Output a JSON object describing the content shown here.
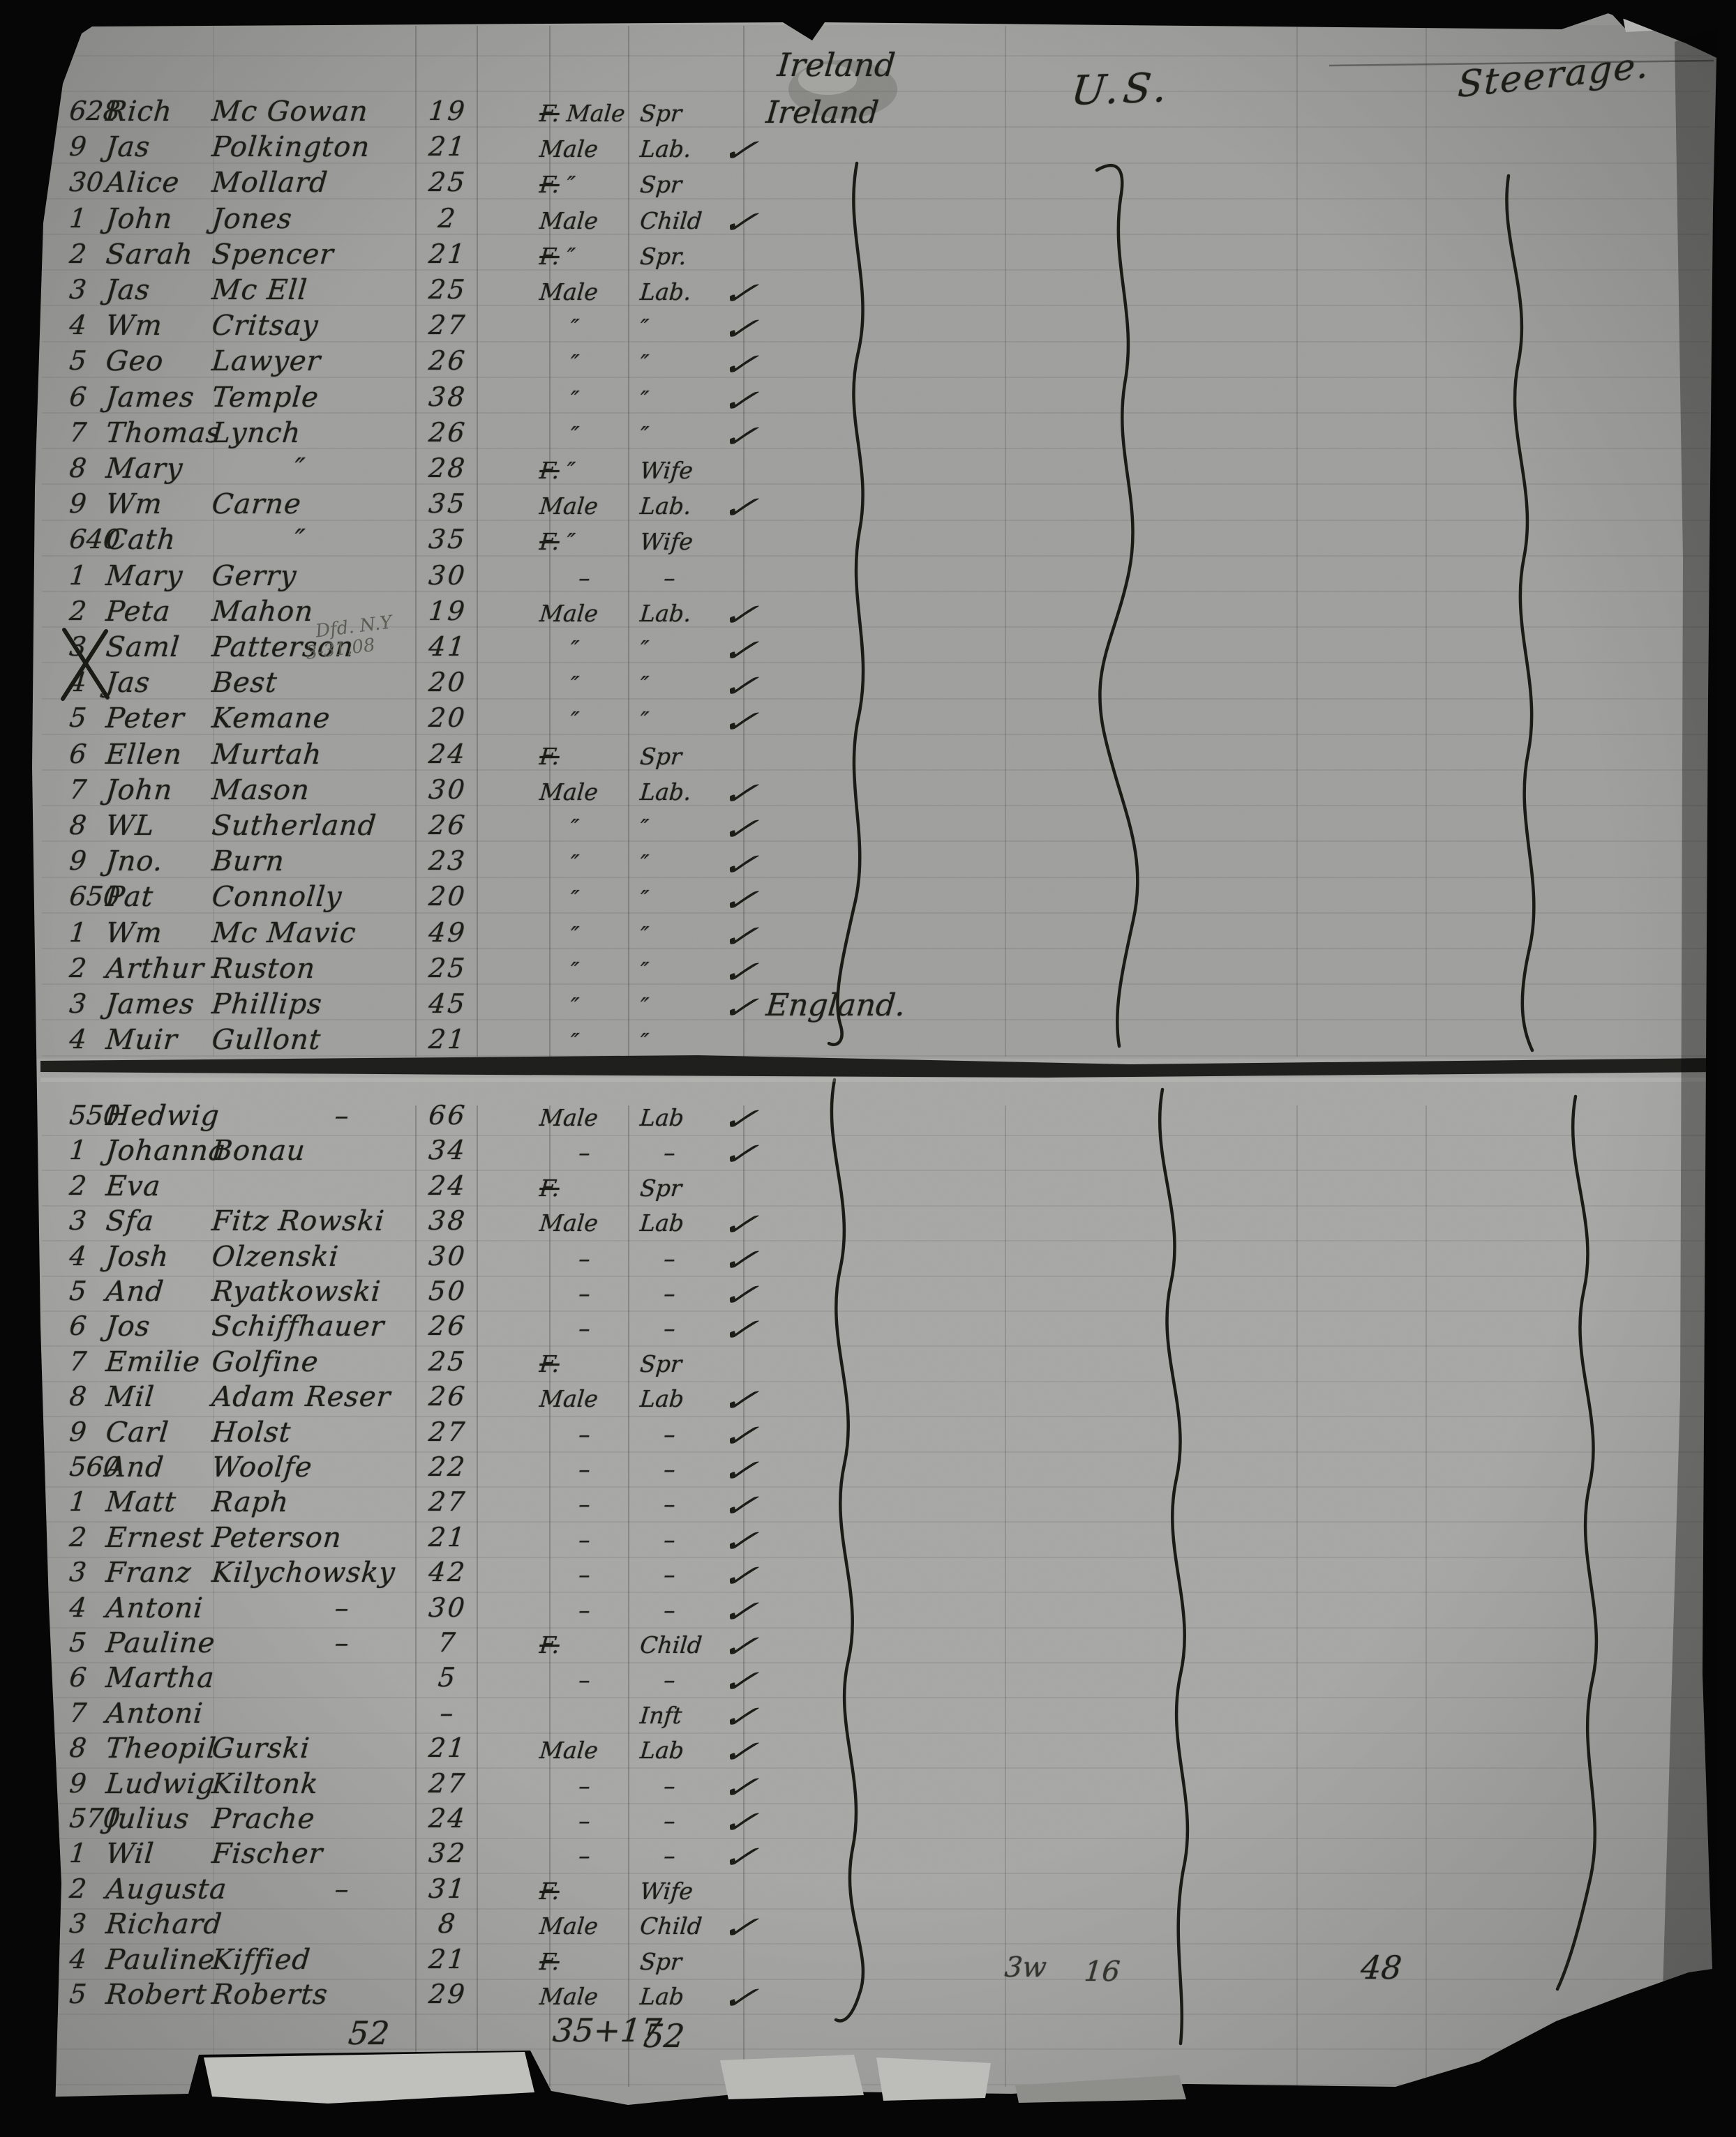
{
  "scan": {
    "headers": {
      "country_top": "Ireland",
      "destination": "U.S.",
      "class": "Steerage."
    },
    "pencil_note": {
      "line1": "Dfd. N.Y",
      "line2": "3-31,08"
    },
    "tallies": [
      {
        "text": "52"
      },
      {
        "text": "35+17"
      },
      {
        "text": "52"
      },
      {
        "text": "3w"
      },
      {
        "text": "16"
      },
      {
        "text": "48"
      }
    ],
    "pages": [
      {
        "label": "top-page",
        "rows": [
          {
            "no": "628",
            "given": "Rich",
            "surname": "Mc Gowan",
            "age": "19",
            "sex": "F. Male",
            "occupation": "Spr",
            "country": "Ireland",
            "check": false
          },
          {
            "no": "9",
            "given": "Jas",
            "surname": "Polkington",
            "age": "21",
            "sex": "Male",
            "occupation": "Lab.",
            "country": "",
            "check": true
          },
          {
            "no": "30",
            "given": "Alice",
            "surname": "Mollard",
            "age": "25",
            "sex": "F. ″",
            "occupation": "Spr",
            "country": "",
            "check": false
          },
          {
            "no": "1",
            "given": "John",
            "surname": "Jones",
            "age": "2",
            "sex": "Male",
            "occupation": "Child",
            "country": "",
            "check": true
          },
          {
            "no": "2",
            "given": "Sarah",
            "surname": "Spencer",
            "age": "21",
            "sex": "F. ″",
            "occupation": "Spr.",
            "country": "",
            "check": false
          },
          {
            "no": "3",
            "given": "Jas",
            "surname": "Mc Ell",
            "age": "25",
            "sex": "Male",
            "occupation": "Lab.",
            "country": "",
            "check": true
          },
          {
            "no": "4",
            "given": "Wm",
            "surname": "Critsay",
            "age": "27",
            "sex": "″",
            "occupation": "″",
            "country": "",
            "check": true
          },
          {
            "no": "5",
            "given": "Geo",
            "surname": "Lawyer",
            "age": "26",
            "sex": "″",
            "occupation": "″",
            "country": "",
            "check": true
          },
          {
            "no": "6",
            "given": "James",
            "surname": "Temple",
            "age": "38",
            "sex": "″",
            "occupation": "″",
            "country": "",
            "check": true
          },
          {
            "no": "7",
            "given": "Thomas",
            "surname": "Lynch",
            "age": "26",
            "sex": "″",
            "occupation": "″",
            "country": "",
            "check": true
          },
          {
            "no": "8",
            "given": "Mary",
            "surname": "″",
            "age": "28",
            "sex": "F. ″",
            "occupation": "Wife",
            "country": "",
            "check": false
          },
          {
            "no": "9",
            "given": "Wm",
            "surname": "Carne",
            "age": "35",
            "sex": "Male",
            "occupation": "Lab.",
            "country": "",
            "check": true
          },
          {
            "no": "640",
            "given": "Cath",
            "surname": "″",
            "age": "35",
            "sex": "F. ″",
            "occupation": "Wife",
            "country": "",
            "check": false
          },
          {
            "no": "1",
            "given": "Mary",
            "surname": "Gerry",
            "age": "30",
            "sex": "–",
            "occupation": "–",
            "country": "",
            "check": false
          },
          {
            "no": "2",
            "given": "Peta",
            "surname": "Mahon",
            "age": "19",
            "sex": "Male",
            "occupation": "Lab.",
            "country": "",
            "check": true
          },
          {
            "no": "3",
            "given": "Saml",
            "surname": "Patterson",
            "age": "41",
            "sex": "″",
            "occupation": "″",
            "country": "",
            "check": true,
            "note": true,
            "xmark": true
          },
          {
            "no": "4",
            "given": "Jas",
            "surname": "Best",
            "age": "20",
            "sex": "″",
            "occupation": "″",
            "country": "",
            "check": true
          },
          {
            "no": "5",
            "given": "Peter",
            "surname": "Kemane",
            "age": "20",
            "sex": "″",
            "occupation": "″",
            "country": "",
            "check": true
          },
          {
            "no": "6",
            "given": "Ellen",
            "surname": "Murtah",
            "age": "24",
            "sex": "F.",
            "occupation": "Spr",
            "country": "",
            "check": false
          },
          {
            "no": "7",
            "given": "John",
            "surname": "Mason",
            "age": "30",
            "sex": "Male",
            "occupation": "Lab.",
            "country": "",
            "check": true
          },
          {
            "no": "8",
            "given": "WL",
            "surname": "Sutherland",
            "age": "26",
            "sex": "″",
            "occupation": "″",
            "country": "",
            "check": true
          },
          {
            "no": "9",
            "given": "Jno.",
            "surname": "Burn",
            "age": "23",
            "sex": "″",
            "occupation": "″",
            "country": "",
            "check": true
          },
          {
            "no": "650",
            "given": "Pat",
            "surname": "Connolly",
            "age": "20",
            "sex": "″",
            "occupation": "″",
            "country": "",
            "check": true
          },
          {
            "no": "1",
            "given": "Wm",
            "surname": "Mc Mavic",
            "age": "49",
            "sex": "″",
            "occupation": "″",
            "country": "",
            "check": true
          },
          {
            "no": "2",
            "given": "Arthur",
            "surname": "Ruston",
            "age": "25",
            "sex": "″",
            "occupation": "″",
            "country": "",
            "check": true
          },
          {
            "no": "3",
            "given": "James",
            "surname": "Phillips",
            "age": "45",
            "sex": "″",
            "occupation": "″",
            "country": "England.",
            "check": true
          },
          {
            "no": "4",
            "given": "Muir",
            "surname": "Gullont",
            "age": "21",
            "sex": "″",
            "occupation": "″",
            "country": "",
            "check": false
          }
        ]
      },
      {
        "label": "bottom-page",
        "rows": [
          {
            "no": "550",
            "given": "Hedwig",
            "surname": "–",
            "age": "66",
            "sex": "Male",
            "occupation": "Lab",
            "country": "",
            "check": true
          },
          {
            "no": "1",
            "given": "Johanna",
            "surname": "Bonau",
            "age": "34",
            "sex": "–",
            "occupation": "–",
            "country": "",
            "check": true
          },
          {
            "no": "2",
            "given": "Eva",
            "surname": "",
            "age": "24",
            "sex": "F.",
            "occupation": "Spr",
            "country": "",
            "check": false
          },
          {
            "no": "3",
            "given": "Sfa",
            "surname": "Fitz Rowski",
            "age": "38",
            "sex": "Male",
            "occupation": "Lab",
            "country": "",
            "check": true
          },
          {
            "no": "4",
            "given": "Josh",
            "surname": "Olzenski",
            "age": "30",
            "sex": "–",
            "occupation": "–",
            "country": "",
            "check": true
          },
          {
            "no": "5",
            "given": "And",
            "surname": "Ryatkowski",
            "age": "50",
            "sex": "–",
            "occupation": "–",
            "country": "",
            "check": true
          },
          {
            "no": "6",
            "given": "Jos",
            "surname": "Schiffhauer",
            "age": "26",
            "sex": "–",
            "occupation": "–",
            "country": "",
            "check": true
          },
          {
            "no": "7",
            "given": "Emilie",
            "surname": "Golfine",
            "age": "25",
            "sex": "F.",
            "occupation": "Spr",
            "country": "",
            "check": false
          },
          {
            "no": "8",
            "given": "Mil",
            "surname": "Adam Reser",
            "age": "26",
            "sex": "Male",
            "occupation": "Lab",
            "country": "",
            "check": true
          },
          {
            "no": "9",
            "given": "Carl",
            "surname": "Holst",
            "age": "27",
            "sex": "–",
            "occupation": "–",
            "country": "",
            "check": true
          },
          {
            "no": "560",
            "given": "And",
            "surname": "Woolfe",
            "age": "22",
            "sex": "–",
            "occupation": "–",
            "country": "",
            "check": true
          },
          {
            "no": "1",
            "given": "Matt",
            "surname": "Raph",
            "age": "27",
            "sex": "–",
            "occupation": "–",
            "country": "",
            "check": true
          },
          {
            "no": "2",
            "given": "Ernest",
            "surname": "Peterson",
            "age": "21",
            "sex": "–",
            "occupation": "–",
            "country": "",
            "check": true
          },
          {
            "no": "3",
            "given": "Franz",
            "surname": "Kilychowsky",
            "age": "42",
            "sex": "–",
            "occupation": "–",
            "country": "",
            "check": true
          },
          {
            "no": "4",
            "given": "Antoni",
            "surname": "–",
            "age": "30",
            "sex": "–",
            "occupation": "–",
            "country": "",
            "check": true
          },
          {
            "no": "5",
            "given": "Pauline",
            "surname": "–",
            "age": "7",
            "sex": "F.",
            "occupation": "Child",
            "country": "",
            "check": true
          },
          {
            "no": "6",
            "given": "Martha",
            "surname": "",
            "age": "5",
            "sex": "–",
            "occupation": "–",
            "country": "",
            "check": true
          },
          {
            "no": "7",
            "given": "Antoni",
            "surname": "",
            "age": "–",
            "sex": "",
            "occupation": "Inft",
            "country": "",
            "check": true
          },
          {
            "no": "8",
            "given": "Theopil",
            "surname": "Gurski",
            "age": "21",
            "sex": "Male",
            "occupation": "Lab",
            "country": "",
            "check": true
          },
          {
            "no": "9",
            "given": "Ludwig",
            "surname": "Kiltonk",
            "age": "27",
            "sex": "–",
            "occupation": "–",
            "country": "",
            "check": true
          },
          {
            "no": "570",
            "given": "Julius",
            "surname": "Prache",
            "age": "24",
            "sex": "–",
            "occupation": "–",
            "country": "",
            "check": true
          },
          {
            "no": "1",
            "given": "Wil",
            "surname": "Fischer",
            "age": "32",
            "sex": "–",
            "occupation": "–",
            "country": "",
            "check": true
          },
          {
            "no": "2",
            "given": "Augusta",
            "surname": "–",
            "age": "31",
            "sex": "F.",
            "occupation": "Wife",
            "country": "",
            "check": false
          },
          {
            "no": "3",
            "given": "Richard",
            "surname": "",
            "age": "8",
            "sex": "Male",
            "occupation": "Child",
            "country": "",
            "check": true
          },
          {
            "no": "4",
            "given": "Pauline",
            "surname": "Kiffied",
            "age": "21",
            "sex": "F.",
            "occupation": "Spr",
            "country": "",
            "check": false
          },
          {
            "no": "5",
            "given": "Robert",
            "surname": "Roberts",
            "age": "29",
            "sex": "Male",
            "occupation": "Lab",
            "country": "",
            "check": true
          }
        ]
      }
    ]
  }
}
